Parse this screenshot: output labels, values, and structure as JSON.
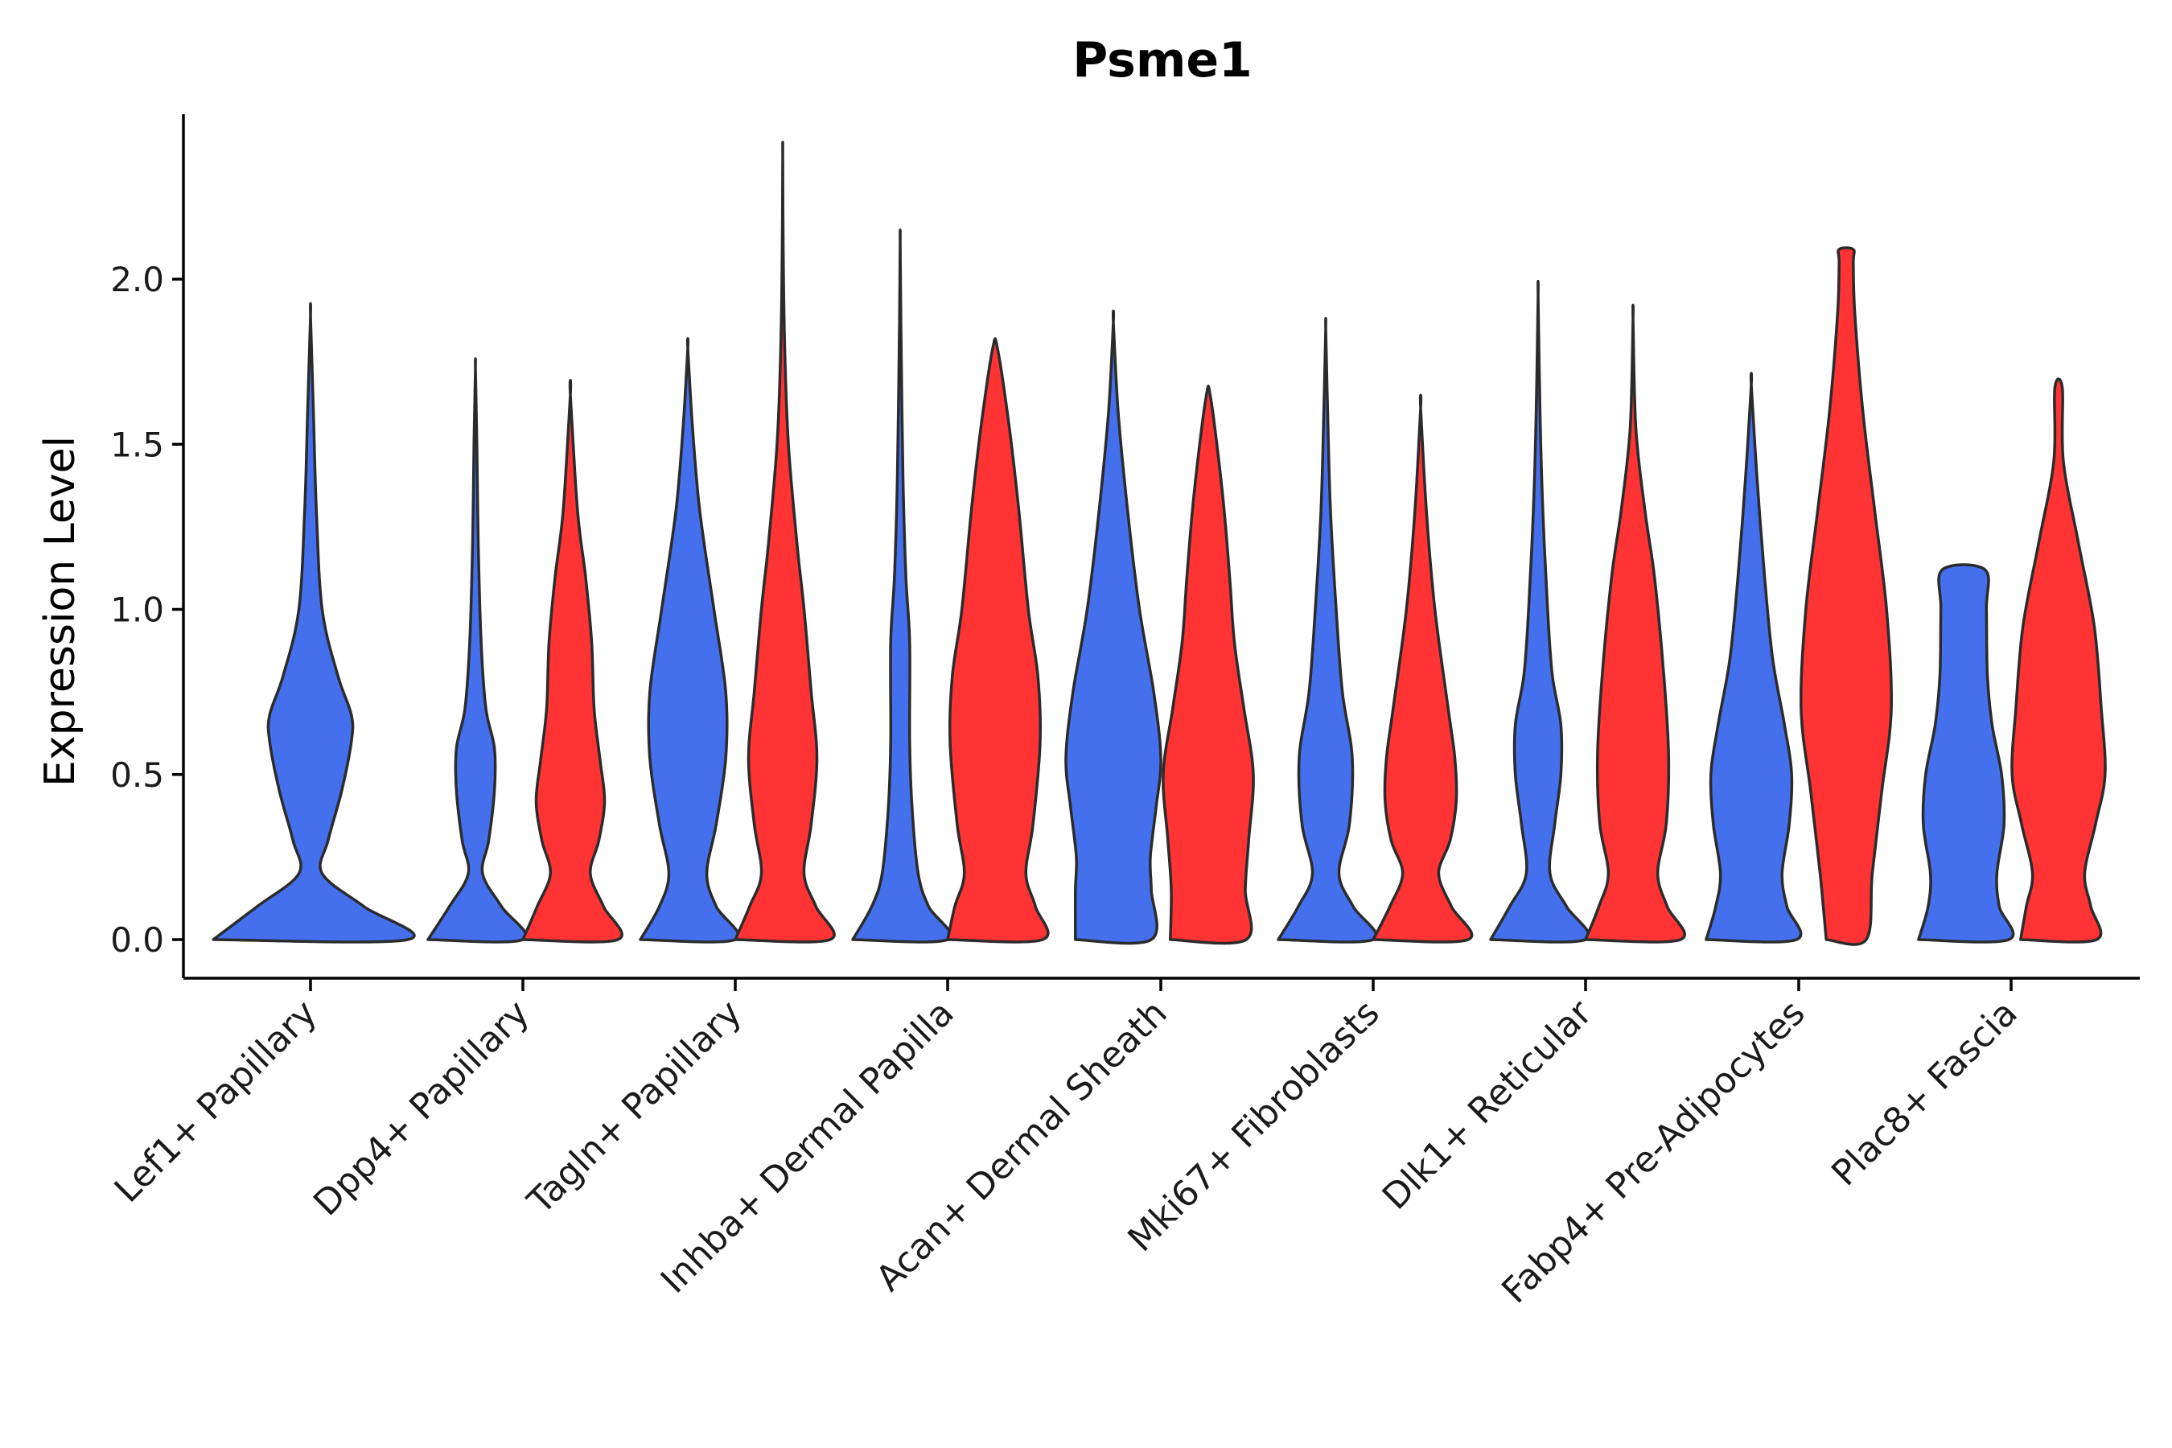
{
  "chart_data": {
    "type": "violin",
    "title": "Psme1",
    "ylabel": "Expression Level",
    "xlabel": "",
    "ylim": [
      -0.12,
      2.5
    ],
    "yticks": [
      "0.0",
      "0.5",
      "1.0",
      "1.5",
      "2.0"
    ],
    "categories": [
      "Lef1+ Papillary",
      "Dpp4+ Papillary",
      "Tagln+ Papillary",
      "Inhba+ Dermal Papilla",
      "Acan+ Dermal Sheath",
      "Mki67+ Fibroblasts",
      "Dlk1+ Reticular",
      "Fabp4+ Pre-Adipocytes",
      "Plac8+ Fascia"
    ],
    "colors": {
      "group_a": "#4470EE",
      "group_b": "#FF3333"
    },
    "series": [
      {
        "color": "#4470EE",
        "violins": [
          {
            "category": "Lef1+ Papillary",
            "max": 1.89,
            "profile": [
              [
                0,
                1.0
              ],
              [
                0.1,
                0.55
              ],
              [
                0.2,
                0.12
              ],
              [
                0.3,
                0.18
              ],
              [
                0.45,
                0.32
              ],
              [
                0.6,
                0.42
              ],
              [
                0.68,
                0.42
              ],
              [
                0.8,
                0.28
              ],
              [
                1.0,
                0.12
              ],
              [
                1.3,
                0.06
              ],
              [
                1.6,
                0.03
              ],
              [
                1.89,
                0.0
              ]
            ]
          },
          {
            "category": "Dpp4+ Papillary",
            "max": 1.73,
            "profile": [
              [
                0,
                1.0
              ],
              [
                0.1,
                0.55
              ],
              [
                0.2,
                0.15
              ],
              [
                0.3,
                0.28
              ],
              [
                0.45,
                0.4
              ],
              [
                0.58,
                0.4
              ],
              [
                0.7,
                0.22
              ],
              [
                0.9,
                0.12
              ],
              [
                1.2,
                0.06
              ],
              [
                1.5,
                0.03
              ],
              [
                1.73,
                0.0
              ]
            ]
          },
          {
            "category": "Tagln+ Papillary",
            "max": 1.79,
            "profile": [
              [
                0,
                1.0
              ],
              [
                0.1,
                0.6
              ],
              [
                0.2,
                0.4
              ],
              [
                0.35,
                0.6
              ],
              [
                0.55,
                0.8
              ],
              [
                0.75,
                0.8
              ],
              [
                1.0,
                0.55
              ],
              [
                1.3,
                0.25
              ],
              [
                1.55,
                0.1
              ],
              [
                1.79,
                0.0
              ]
            ]
          },
          {
            "category": "Inhba+ Dermal Papilla",
            "max": 2.11,
            "profile": [
              [
                0,
                1.0
              ],
              [
                0.1,
                0.6
              ],
              [
                0.2,
                0.38
              ],
              [
                0.4,
                0.25
              ],
              [
                0.6,
                0.2
              ],
              [
                0.9,
                0.2
              ],
              [
                1.1,
                0.12
              ],
              [
                1.4,
                0.06
              ],
              [
                1.8,
                0.02
              ],
              [
                2.11,
                0.0
              ]
            ]
          },
          {
            "category": "Acan+ Dermal Sheath",
            "max": 1.87,
            "profile": [
              [
                0,
                0.8
              ],
              [
                0.15,
                0.8
              ],
              [
                0.25,
                0.78
              ],
              [
                0.4,
                0.9
              ],
              [
                0.55,
                1.0
              ],
              [
                0.75,
                0.85
              ],
              [
                1.0,
                0.55
              ],
              [
                1.3,
                0.3
              ],
              [
                1.6,
                0.1
              ],
              [
                1.87,
                0.0
              ]
            ]
          },
          {
            "category": "Mki67+ Fibroblasts",
            "max": 1.85,
            "profile": [
              [
                0,
                1.0
              ],
              [
                0.1,
                0.58
              ],
              [
                0.2,
                0.28
              ],
              [
                0.35,
                0.5
              ],
              [
                0.55,
                0.56
              ],
              [
                0.75,
                0.35
              ],
              [
                1.0,
                0.22
              ],
              [
                1.3,
                0.1
              ],
              [
                1.6,
                0.04
              ],
              [
                1.85,
                0.0
              ]
            ]
          },
          {
            "category": "Dlk1+ Reticular",
            "max": 1.95,
            "profile": [
              [
                0,
                1.0
              ],
              [
                0.1,
                0.6
              ],
              [
                0.2,
                0.25
              ],
              [
                0.35,
                0.35
              ],
              [
                0.5,
                0.48
              ],
              [
                0.65,
                0.48
              ],
              [
                0.8,
                0.3
              ],
              [
                1.0,
                0.2
              ],
              [
                1.3,
                0.1
              ],
              [
                1.6,
                0.04
              ],
              [
                1.95,
                0.0
              ]
            ]
          },
          {
            "category": "Fabp4+ Pre-Adipocytes",
            "max": 1.68,
            "profile": [
              [
                0,
                0.95
              ],
              [
                0.1,
                0.75
              ],
              [
                0.2,
                0.65
              ],
              [
                0.35,
                0.8
              ],
              [
                0.5,
                0.85
              ],
              [
                0.65,
                0.7
              ],
              [
                0.85,
                0.45
              ],
              [
                1.1,
                0.28
              ],
              [
                1.4,
                0.12
              ],
              [
                1.68,
                0.0
              ]
            ]
          },
          {
            "category": "Plac8+ Fascia",
            "max": 1.12,
            "profile": [
              [
                0,
                0.95
              ],
              [
                0.1,
                0.75
              ],
              [
                0.2,
                0.7
              ],
              [
                0.35,
                0.85
              ],
              [
                0.5,
                0.8
              ],
              [
                0.65,
                0.6
              ],
              [
                0.8,
                0.5
              ],
              [
                1.0,
                0.48
              ],
              [
                1.12,
                0.45
              ]
            ]
          }
        ]
      },
      {
        "color": "#FF3333",
        "violins": [
          {
            "category": "Dpp4+ Papillary",
            "max": 1.65,
            "profile": [
              [
                0,
                1.0
              ],
              [
                0.1,
                0.7
              ],
              [
                0.2,
                0.42
              ],
              [
                0.3,
                0.6
              ],
              [
                0.42,
                0.72
              ],
              [
                0.55,
                0.62
              ],
              [
                0.7,
                0.5
              ],
              [
                0.9,
                0.45
              ],
              [
                1.1,
                0.32
              ],
              [
                1.3,
                0.15
              ],
              [
                1.65,
                0.0
              ]
            ]
          },
          {
            "category": "Tagln+ Papillary",
            "max": 2.38,
            "profile": [
              [
                0,
                1.0
              ],
              [
                0.1,
                0.7
              ],
              [
                0.2,
                0.45
              ],
              [
                0.35,
                0.6
              ],
              [
                0.55,
                0.72
              ],
              [
                0.75,
                0.6
              ],
              [
                1.0,
                0.45
              ],
              [
                1.2,
                0.3
              ],
              [
                1.5,
                0.12
              ],
              [
                1.8,
                0.04
              ],
              [
                2.1,
                0.01
              ],
              [
                2.38,
                0.0
              ]
            ]
          },
          {
            "category": "Inhba+ Dermal Papilla",
            "max": 1.79,
            "profile": [
              [
                0,
                1.0
              ],
              [
                0.1,
                0.85
              ],
              [
                0.2,
                0.65
              ],
              [
                0.35,
                0.8
              ],
              [
                0.6,
                0.95
              ],
              [
                0.8,
                0.9
              ],
              [
                1.0,
                0.7
              ],
              [
                1.3,
                0.5
              ],
              [
                1.55,
                0.3
              ],
              [
                1.79,
                0.05
              ]
            ]
          },
          {
            "category": "Acan+ Dermal Sheath",
            "max": 1.64,
            "profile": [
              [
                0,
                0.8
              ],
              [
                0.15,
                0.78
              ],
              [
                0.3,
                0.85
              ],
              [
                0.5,
                0.95
              ],
              [
                0.7,
                0.75
              ],
              [
                0.9,
                0.55
              ],
              [
                1.1,
                0.45
              ],
              [
                1.35,
                0.3
              ],
              [
                1.64,
                0.05
              ]
            ]
          },
          {
            "category": "Mki67+ Fibroblasts",
            "max": 1.61,
            "profile": [
              [
                0,
                1.0
              ],
              [
                0.1,
                0.65
              ],
              [
                0.2,
                0.38
              ],
              [
                0.3,
                0.62
              ],
              [
                0.42,
                0.75
              ],
              [
                0.55,
                0.72
              ],
              [
                0.7,
                0.58
              ],
              [
                1.0,
                0.3
              ],
              [
                1.3,
                0.12
              ],
              [
                1.61,
                0.0
              ]
            ]
          },
          {
            "category": "Dlk1+ Reticular",
            "max": 1.88,
            "profile": [
              [
                0,
                1.0
              ],
              [
                0.1,
                0.72
              ],
              [
                0.2,
                0.52
              ],
              [
                0.35,
                0.7
              ],
              [
                0.55,
                0.75
              ],
              [
                0.8,
                0.65
              ],
              [
                1.1,
                0.45
              ],
              [
                1.3,
                0.25
              ],
              [
                1.55,
                0.06
              ],
              [
                1.88,
                0.0
              ]
            ]
          },
          {
            "category": "Fabp4+ Pre-Adipocytes",
            "max": 2.09,
            "profile": [
              [
                0,
                0.42
              ],
              [
                0.2,
                0.55
              ],
              [
                0.45,
                0.75
              ],
              [
                0.7,
                0.95
              ],
              [
                1.0,
                0.85
              ],
              [
                1.3,
                0.6
              ],
              [
                1.6,
                0.35
              ],
              [
                1.9,
                0.18
              ],
              [
                2.05,
                0.15
              ],
              [
                2.09,
                0.15
              ]
            ]
          },
          {
            "category": "Plac8+ Fascia",
            "max": 1.67,
            "profile": [
              [
                0,
                0.8
              ],
              [
                0.1,
                0.68
              ],
              [
                0.2,
                0.55
              ],
              [
                0.35,
                0.78
              ],
              [
                0.5,
                0.98
              ],
              [
                0.7,
                0.9
              ],
              [
                0.95,
                0.75
              ],
              [
                1.2,
                0.42
              ],
              [
                1.45,
                0.1
              ],
              [
                1.67,
                0.08
              ]
            ]
          }
        ]
      }
    ]
  }
}
